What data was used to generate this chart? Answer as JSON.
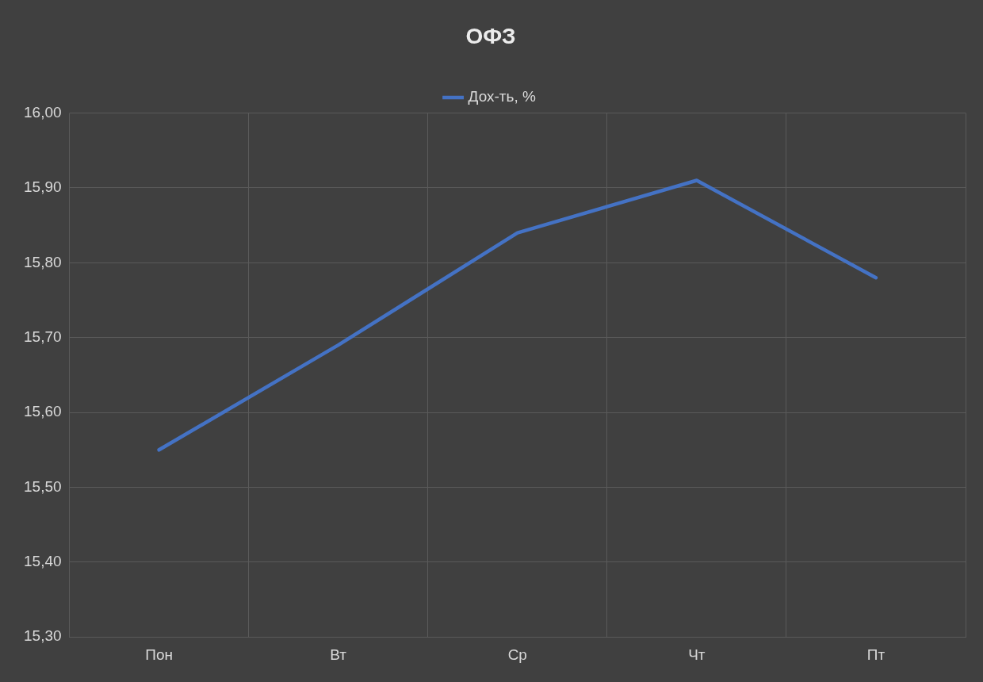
{
  "chart_data": {
    "type": "line",
    "title": "ОФЗ",
    "categories": [
      "Пон",
      "Вт",
      "Ср",
      "Чт",
      "Пт"
    ],
    "series": [
      {
        "name": "Дох-ть, %",
        "color": "#4472c4",
        "values": [
          15.55,
          15.69,
          15.84,
          15.91,
          15.78
        ]
      }
    ],
    "ylim": [
      15.3,
      16.0
    ],
    "yticks": [
      {
        "value": 15.3,
        "label": "15,30"
      },
      {
        "value": 15.4,
        "label": "15,40"
      },
      {
        "value": 15.5,
        "label": "15,50"
      },
      {
        "value": 15.6,
        "label": "15,60"
      },
      {
        "value": 15.7,
        "label": "15,70"
      },
      {
        "value": 15.8,
        "label": "15,80"
      },
      {
        "value": 15.9,
        "label": "15,90"
      },
      {
        "value": 16.0,
        "label": "16,00"
      }
    ],
    "grid": true,
    "legend": "top",
    "marker": "none",
    "line_style": "solid"
  }
}
